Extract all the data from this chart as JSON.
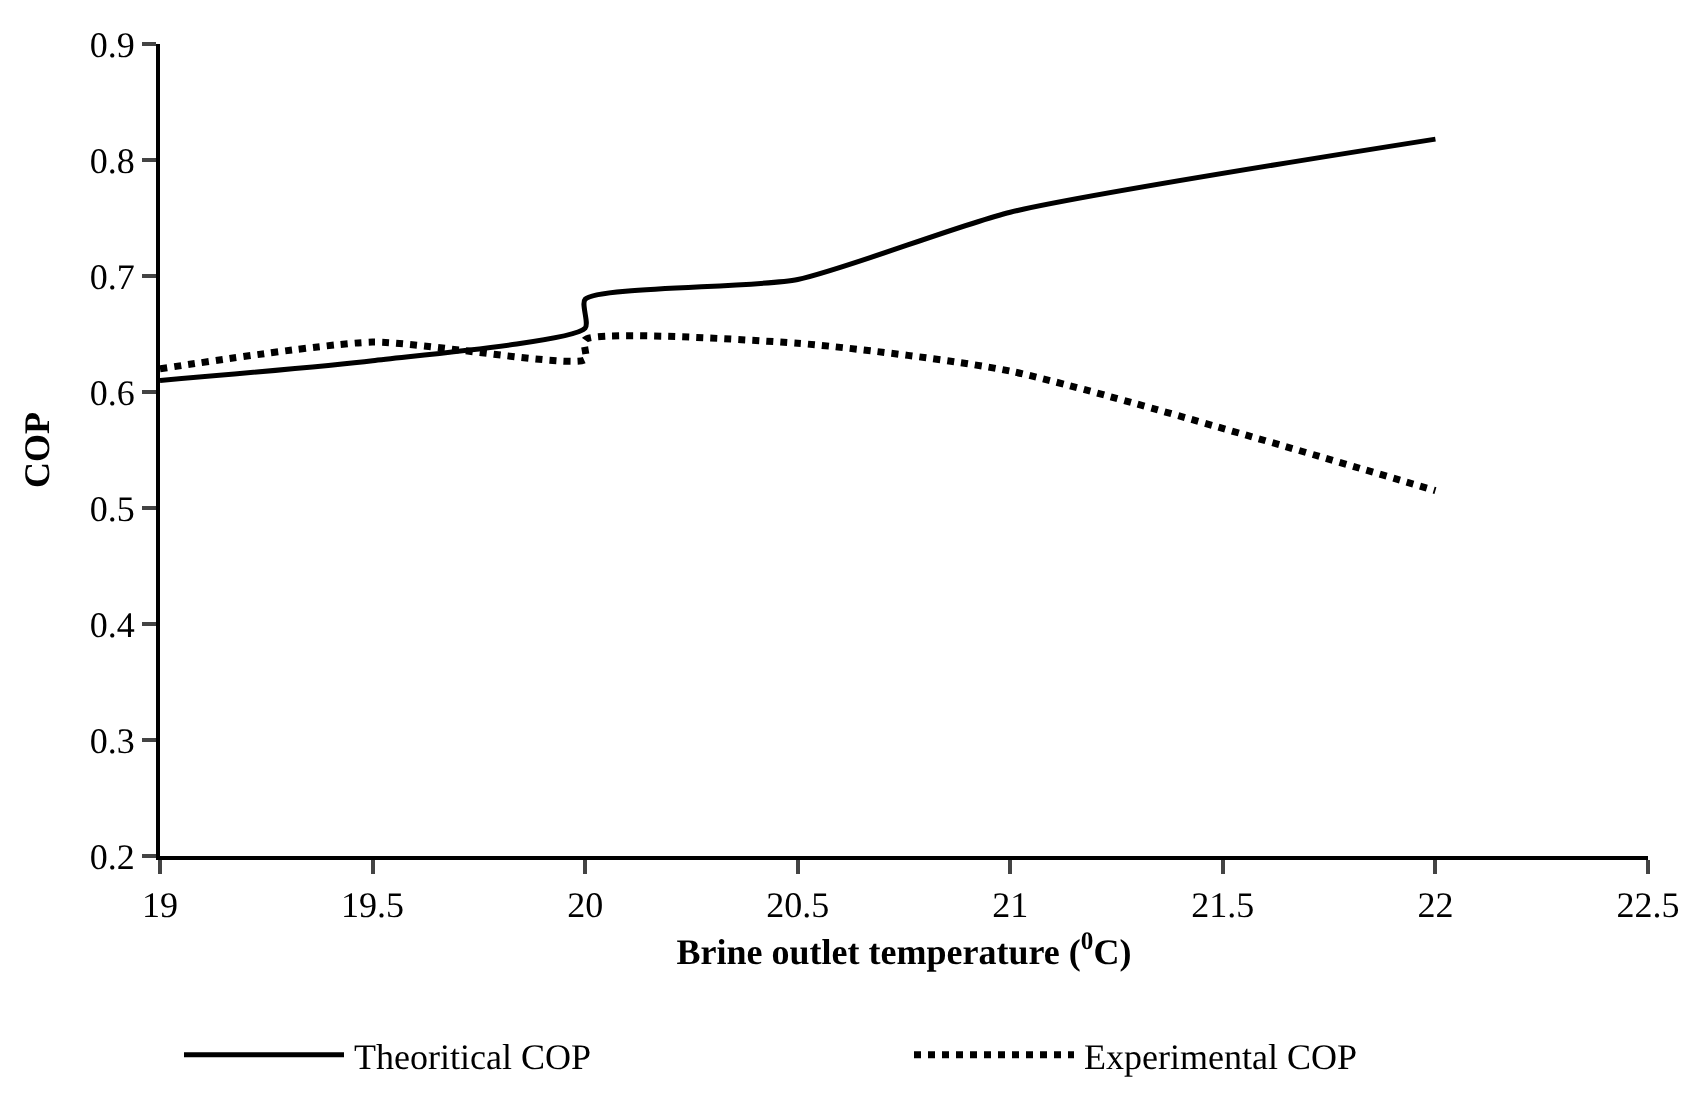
{
  "chart_data": {
    "type": "line",
    "xlabel": "Brine outlet temperature ($^{0}$C)",
    "ylabel": "COP",
    "xlim": [
      19,
      22.5
    ],
    "xticks": [
      19,
      19.5,
      20,
      20.5,
      21,
      21.5,
      22,
      22.5
    ],
    "ylim": [
      0.2,
      0.9
    ],
    "yticks": [
      0.2,
      0.3,
      0.4,
      0.5,
      0.6,
      0.7,
      0.8,
      0.9
    ],
    "legend": "bottom",
    "marker": "none",
    "series": [
      {
        "name": "Theoritical COP",
        "color": "#000000",
        "line_style": "solid",
        "x": [
          19,
          19.5,
          20,
          20,
          20.5,
          21,
          22
        ],
        "values": [
          0.61,
          0.627,
          0.655,
          0.68,
          0.697,
          0.755,
          0.818
        ]
      },
      {
        "name": "Experimental COP",
        "color": "#000000",
        "line_style": "dotted",
        "x": [
          19,
          19.5,
          20,
          20,
          20.5,
          21,
          22
        ],
        "values": [
          0.62,
          0.643,
          0.628,
          0.645,
          0.642,
          0.618,
          0.515
        ]
      }
    ]
  }
}
